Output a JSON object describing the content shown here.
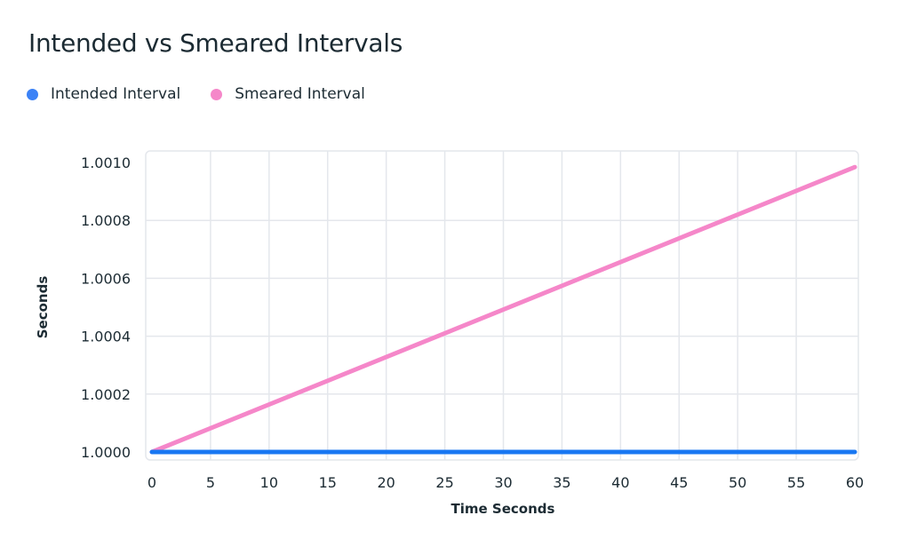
{
  "chart_data": {
    "type": "line",
    "title": "Intended vs Smeared Intervals",
    "xlabel": "Time Seconds",
    "ylabel": "Seconds",
    "xlim": [
      0,
      60
    ],
    "ylim": [
      1.0,
      1.001
    ],
    "x_ticks": [
      "0",
      "5",
      "10",
      "15",
      "20",
      "25",
      "30",
      "35",
      "40",
      "45",
      "50",
      "55",
      "60"
    ],
    "y_ticks": [
      "1.0000",
      "1.0002",
      "1.0004",
      "1.0006",
      "1.0008",
      "1.0010"
    ],
    "grid": true,
    "legend_position": "top-left",
    "series": [
      {
        "name": "Intended Interval",
        "color": "#1877f2",
        "legend_color": "#3b82f6",
        "x": [
          0,
          60
        ],
        "values": [
          1.0,
          1.0
        ]
      },
      {
        "name": "Smeared Interval",
        "color": "#f587c9",
        "legend_color": "#f587c9",
        "x": [
          0,
          60
        ],
        "values": [
          1.0,
          1.000984
        ]
      }
    ]
  }
}
